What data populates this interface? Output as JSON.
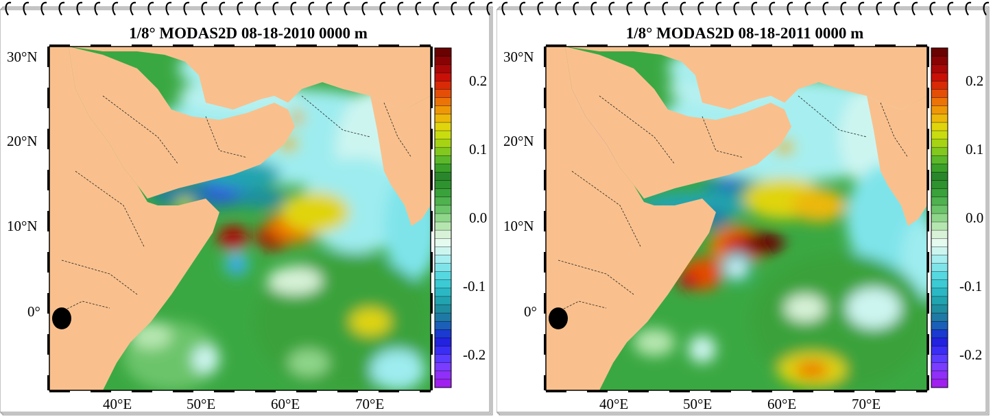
{
  "panels": [
    {
      "id": "left",
      "title": "1/8° MODAS2D 08-18-2010 0000 m",
      "y_ticks": [
        "30°N",
        "20°N",
        "10°N",
        "0°"
      ],
      "x_ticks": [
        "40°E",
        "50°E",
        "60°E",
        "70°E"
      ],
      "colorbar_ticks": [
        "0.2",
        "0.1",
        "0.0",
        "-0.1",
        "-0.2"
      ]
    },
    {
      "id": "right",
      "title": "1/8° MODAS2D 08-18-2011 0000 m",
      "y_ticks": [
        "30°N",
        "20°N",
        "10°N",
        "0°"
      ],
      "x_ticks": [
        "40°E",
        "50°E",
        "60°E",
        "70°E"
      ],
      "colorbar_ticks": [
        "0.2",
        "0.1",
        "0.0",
        "-0.1",
        "-0.2"
      ]
    }
  ],
  "colors": {
    "land": "#f9c08d",
    "ocean_base": "#3aa842",
    "colorbar": [
      "#a020f0",
      "#8f2ff8",
      "#7a3cff",
      "#5a3cff",
      "#3a2ef5",
      "#2222e0",
      "#1a3ad0",
      "#1b5fb8",
      "#1e7aa4",
      "#1f8ea0",
      "#21a4b0",
      "#2bb8c4",
      "#3ccad4",
      "#55d8e0",
      "#7fe4ea",
      "#a6eef0",
      "#cdf5f0",
      "#e6fbf0",
      "#d8f2d8",
      "#b6e6b0",
      "#8fd68a",
      "#6cc46a",
      "#4eb24e",
      "#3aa23a",
      "#2e922e",
      "#2a862a",
      "#3aa02a",
      "#5cb82a",
      "#82c81e",
      "#a6d414",
      "#c8dc10",
      "#e0d40c",
      "#ecb80a",
      "#ee9808",
      "#ec7406",
      "#e44e06",
      "#d82a06",
      "#c81008",
      "#a80808",
      "#880404",
      "#6a0202"
    ]
  }
}
